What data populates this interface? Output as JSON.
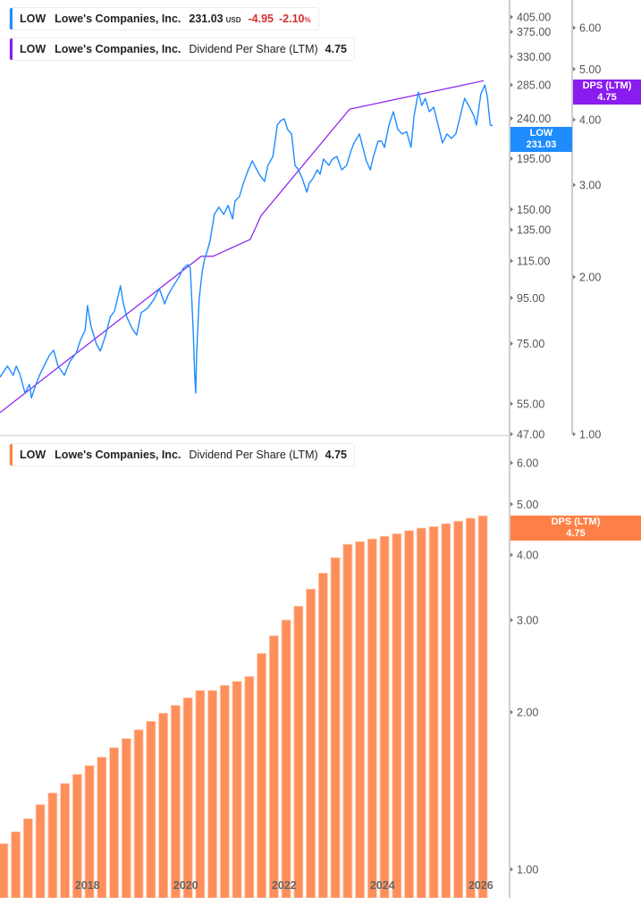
{
  "colors": {
    "price": "#1e8cff",
    "dps_line": "#8a1cf0",
    "bars": "#ff8f5a",
    "price_tag": "#1e8cff",
    "dps_tag_top": "#8a1cf0",
    "dps_tag_bottom": "#ff8046",
    "negative": "#d32f2f"
  },
  "legends": {
    "price": {
      "ticker": "LOW",
      "name": "Lowe's Companies, Inc.",
      "price": "231.03",
      "currency": "USD",
      "change": "-4.95",
      "change_pct": "-2.10",
      "pct_sign": "%"
    },
    "dps_top": {
      "ticker": "LOW",
      "name": "Lowe's Companies, Inc.",
      "metric": "Dividend Per Share (LTM)",
      "value": "4.75"
    },
    "dps_bottom": {
      "ticker": "LOW",
      "name": "Lowe's Companies, Inc.",
      "metric": "Dividend Per Share (LTM)",
      "value": "4.75"
    }
  },
  "tags": {
    "price": {
      "line1": "LOW",
      "line2": "231.03"
    },
    "dps_top": {
      "line1": "DPS (LTM)",
      "line2": "4.75"
    },
    "dps_bottom": {
      "line1": "DPS (LTM)",
      "line2": "4.75"
    }
  },
  "chart_data": [
    {
      "type": "line",
      "pane": "top",
      "scale": "log",
      "y_axis_price": {
        "ticks": [
          "405.00",
          "375.00",
          "330.00",
          "285.00",
          "240.00",
          "195.00",
          "150.00",
          "135.00",
          "115.00",
          "95.00",
          "75.00",
          "55.00",
          "47.00"
        ],
        "range": [
          47,
          405
        ]
      },
      "y_axis_dps": {
        "ticks": [
          "6.00",
          "5.00",
          "4.00",
          "3.00",
          "2.00",
          "1.00"
        ],
        "range": [
          1,
          6
        ]
      },
      "x_range": [
        2016.24,
        2026.6
      ],
      "series": [
        {
          "key": "price",
          "x": [
            2016.24,
            2016.39,
            2016.51,
            2016.57,
            2016.64,
            2016.75,
            2016.84,
            2016.88,
            2016.97,
            2017.06,
            2017.24,
            2017.33,
            2017.42,
            2017.55,
            2017.66,
            2017.79,
            2017.88,
            2017.97,
            2018.02,
            2018.09,
            2018.2,
            2018.28,
            2018.39,
            2018.48,
            2018.57,
            2018.69,
            2018.75,
            2018.82,
            2018.93,
            2019.02,
            2019.11,
            2019.24,
            2019.37,
            2019.48,
            2019.59,
            2019.66,
            2019.79,
            2019.88,
            2019.97,
            2020.06,
            2020.11,
            2020.17,
            2020.2,
            2020.22,
            2020.24,
            2020.29,
            2020.35,
            2020.4,
            2020.46,
            2020.51,
            2020.6,
            2020.69,
            2020.79,
            2020.88,
            2020.97,
            2021.02,
            2021.11,
            2021.19,
            2021.29,
            2021.37,
            2021.51,
            2021.62,
            2021.69,
            2021.79,
            2021.88,
            2021.95,
            2022.02,
            2022.09,
            2022.17,
            2022.24,
            2022.31,
            2022.39,
            2022.48,
            2022.53,
            2022.6,
            2022.69,
            2022.75,
            2022.82,
            2022.93,
            2023.0,
            2023.09,
            2023.19,
            2023.29,
            2023.37,
            2023.44,
            2023.55,
            2023.62,
            2023.69,
            2023.77,
            2023.84,
            2023.93,
            2024.0,
            2024.06,
            2024.15,
            2024.24,
            2024.33,
            2024.42,
            2024.51,
            2024.6,
            2024.66,
            2024.75,
            2024.82,
            2024.89,
            2024.97,
            2025.06,
            2025.15,
            2025.24,
            2025.33,
            2025.42,
            2025.51,
            2025.6,
            2025.69,
            2025.79,
            2025.88,
            2025.93,
            2026.02,
            2026.1,
            2026.15,
            2026.21,
            2026.26
          ],
          "y": [
            63.1,
            66.8,
            63.7,
            66.8,
            64.3,
            58.1,
            60.8,
            56.7,
            60.8,
            64.3,
            70.5,
            72.5,
            66.8,
            63.7,
            68.3,
            71.5,
            76.6,
            80.2,
            91.3,
            82.1,
            74.9,
            72.2,
            78.4,
            86.0,
            88.8,
            101.1,
            92.1,
            86.0,
            81.0,
            78.4,
            88.0,
            90.0,
            94.2,
            99.7,
            92.1,
            96.5,
            102.0,
            105.8,
            110.8,
            112.8,
            110.8,
            80.0,
            63.7,
            58.1,
            71.5,
            94.2,
            108.3,
            116.0,
            121.5,
            127.2,
            146.2,
            151.7,
            146.2,
            153.1,
            142.8,
            156.6,
            160.3,
            171.7,
            184.0,
            192.7,
            179.9,
            173.3,
            188.3,
            197.1,
            231.8,
            237.2,
            239.4,
            226.6,
            221.4,
            188.3,
            184.0,
            175.7,
            164.0,
            171.7,
            175.7,
            184.0,
            179.9,
            194.5,
            188.3,
            194.5,
            197.1,
            184.0,
            188.3,
            201.8,
            211.4,
            221.4,
            206.6,
            192.7,
            184.0,
            198.0,
            213.3,
            213.3,
            206.6,
            231.8,
            248.4,
            226.6,
            221.4,
            224.0,
            206.6,
            242.7,
            275.0,
            256.4,
            266.1,
            248.4,
            254.2,
            231.8,
            211.4,
            221.4,
            216.4,
            221.4,
            242.7,
            266.1,
            254.2,
            242.7,
            231.8,
            272.3,
            285.1,
            268.6,
            231.8,
            231.03
          ]
        },
        {
          "key": "dps_line",
          "x": [
            2016.24,
            2020.33,
            2020.57,
            2021.33,
            2021.55,
            2023.35,
            2026.08
          ],
          "y": [
            1.1,
            2.19,
            2.19,
            2.36,
            2.62,
            4.19,
            4.75
          ]
        }
      ]
    },
    {
      "type": "bar",
      "pane": "bottom",
      "scale": "log",
      "y_axis": {
        "ticks": [
          "6.00",
          "5.00",
          "4.00",
          "3.00",
          "2.00",
          "1.00"
        ],
        "range": [
          1,
          6
        ]
      },
      "x_ticks": [
        "2018",
        "2020",
        "2022",
        "2024",
        "2026"
      ],
      "x": [
        2016.31,
        2016.56,
        2016.81,
        2017.06,
        2017.31,
        2017.56,
        2017.81,
        2018.06,
        2018.31,
        2018.56,
        2018.81,
        2019.06,
        2019.31,
        2019.56,
        2019.81,
        2020.06,
        2020.31,
        2020.56,
        2020.81,
        2021.06,
        2021.31,
        2021.56,
        2021.81,
        2022.06,
        2022.31,
        2022.56,
        2022.81,
        2023.06,
        2023.31,
        2023.56,
        2023.81,
        2024.06,
        2024.31,
        2024.56,
        2024.81,
        2025.06,
        2025.31,
        2025.56,
        2025.81,
        2026.06
      ],
      "values": [
        1.12,
        1.18,
        1.25,
        1.33,
        1.4,
        1.46,
        1.52,
        1.58,
        1.64,
        1.71,
        1.78,
        1.85,
        1.92,
        1.99,
        2.06,
        2.13,
        2.2,
        2.2,
        2.25,
        2.29,
        2.34,
        2.59,
        2.8,
        3.0,
        3.19,
        3.44,
        3.69,
        3.95,
        4.19,
        4.24,
        4.29,
        4.34,
        4.39,
        4.45,
        4.5,
        4.53,
        4.59,
        4.64,
        4.7,
        4.75
      ]
    }
  ]
}
